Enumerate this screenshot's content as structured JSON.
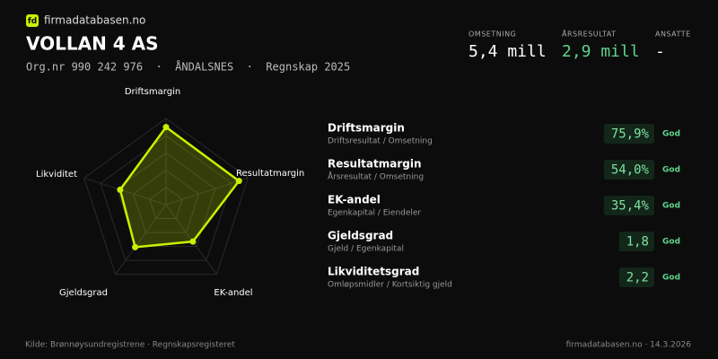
{
  "header": {
    "brand": "firmadatabasen.no",
    "logo": "fd",
    "title": "VOLLAN 4 AS",
    "subtitle": "Org.nr 990 242 976  ·  ÅNDALSNES  ·  Regnskap 2025"
  },
  "kpis": [
    {
      "label": "OMSETNING",
      "value": "5,4 mill"
    },
    {
      "label": "ÅRSRESULTAT",
      "value": "2,9 mill"
    },
    {
      "label": "ANSATTE",
      "value": "-"
    }
  ],
  "chart_data": {
    "type": "radar",
    "categories": [
      "Driftsmargin",
      "Resultatmargin",
      "EK-andel",
      "Gjeldsgrad",
      "Likviditet"
    ],
    "values": [
      90,
      89,
      53,
      61,
      56
    ],
    "color": "#c8f000",
    "ylim": [
      0,
      100
    ],
    "yticks": [
      20,
      40,
      60,
      80,
      100
    ]
  },
  "metrics": [
    {
      "name": "Driftsmargin",
      "description": "Driftsresultat / Omsetning",
      "value": "75,9%",
      "rating": "God"
    },
    {
      "name": "Resultatmargin",
      "description": "Årsresultat / Omsetning",
      "value": "54,0%",
      "rating": "God"
    },
    {
      "name": "EK-andel",
      "description": "Egenkapital / Eiendeler",
      "value": "35,4%",
      "rating": "God"
    },
    {
      "name": "Gjeldsgrad",
      "description": "Gjeld / Egenkapital",
      "value": "1,8",
      "rating": "God"
    },
    {
      "name": "Likviditetsgrad",
      "description": "Omløpsmidler / Kortsiktig gjeld",
      "value": "2,2",
      "rating": "God"
    }
  ],
  "footer": {
    "source": "Kilde: Brønnøysundregistrene · Regnskapsregisteret",
    "site": "firmadatabasen.no · 14.3.2026"
  }
}
